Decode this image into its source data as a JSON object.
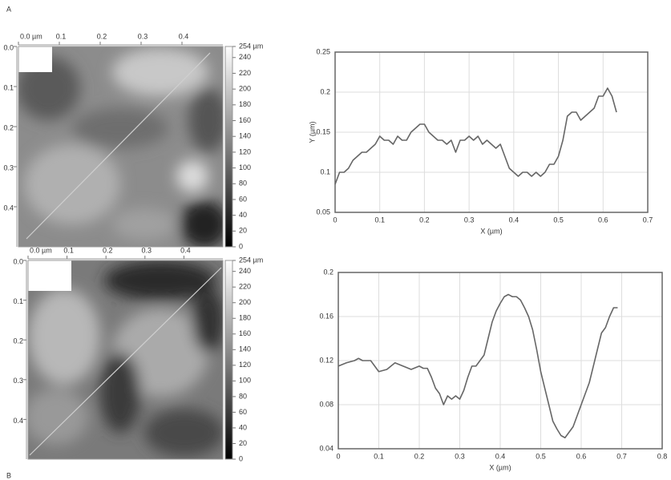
{
  "chart_data": [
    {
      "type": "image",
      "panel_label": "A",
      "xlim": [
        0,
        0.5
      ],
      "xticks": [
        {
          "value": 0,
          "label": "0.0 µm"
        },
        0.1,
        0.2,
        0.3,
        0.4
      ],
      "ylim": [
        0,
        0.5
      ],
      "yticks": [
        {
          "value": 0,
          "label": "0.0"
        },
        0.1,
        0.2,
        0.3,
        0.4
      ],
      "colorbar": {
        "lim": [
          0,
          254
        ],
        "ticks": [
          0,
          20,
          40,
          60,
          80,
          100,
          120,
          140,
          160,
          180,
          200,
          220,
          240,
          {
            "value": 254,
            "label": "254 µm"
          }
        ]
      }
    },
    {
      "type": "line",
      "xlabel": "X (µm)",
      "ylabel": "Y (µm)",
      "xlim": [
        0,
        0.7
      ],
      "xticks": [
        0,
        0.1,
        0.2,
        0.3,
        0.4,
        0.5,
        0.6,
        0.7
      ],
      "ylim": [
        0.05,
        0.25
      ],
      "yticks": [
        0.05,
        0.1,
        0.15,
        0.2,
        0.25
      ],
      "grid": true,
      "x": [
        0,
        0.01,
        0.02,
        0.03,
        0.04,
        0.05,
        0.06,
        0.07,
        0.08,
        0.09,
        0.1,
        0.11,
        0.12,
        0.13,
        0.14,
        0.15,
        0.16,
        0.17,
        0.18,
        0.19,
        0.2,
        0.21,
        0.22,
        0.23,
        0.24,
        0.25,
        0.26,
        0.27,
        0.28,
        0.29,
        0.3,
        0.31,
        0.32,
        0.33,
        0.34,
        0.35,
        0.36,
        0.37,
        0.38,
        0.39,
        0.4,
        0.41,
        0.42,
        0.43,
        0.44,
        0.45,
        0.46,
        0.47,
        0.48,
        0.49,
        0.5,
        0.51,
        0.52,
        0.53,
        0.54,
        0.55,
        0.56,
        0.57,
        0.58,
        0.59,
        0.6,
        0.61,
        0.62,
        0.63
      ],
      "series": [
        {
          "color": "#666666",
          "values": [
            0.085,
            0.1,
            0.1,
            0.105,
            0.115,
            0.12,
            0.125,
            0.125,
            0.13,
            0.135,
            0.145,
            0.14,
            0.14,
            0.135,
            0.145,
            0.14,
            0.14,
            0.15,
            0.155,
            0.16,
            0.16,
            0.15,
            0.145,
            0.14,
            0.14,
            0.135,
            0.14,
            0.125,
            0.14,
            0.14,
            0.145,
            0.14,
            0.145,
            0.135,
            0.14,
            0.135,
            0.13,
            0.135,
            0.12,
            0.105,
            0.1,
            0.095,
            0.1,
            0.1,
            0.095,
            0.1,
            0.095,
            0.1,
            0.11,
            0.11,
            0.12,
            0.14,
            0.17,
            0.175,
            0.175,
            0.165,
            0.17,
            0.175,
            0.18,
            0.195,
            0.195,
            0.205,
            0.195,
            0.175
          ]
        }
      ]
    },
    {
      "type": "image",
      "panel_label": "B",
      "xlim": [
        0,
        0.5
      ],
      "xticks": [
        {
          "value": 0,
          "label": "0.0 µm"
        },
        0.1,
        0.2,
        0.3,
        0.4
      ],
      "ylim": [
        0,
        0.5
      ],
      "yticks": [
        {
          "value": 0,
          "label": "0.0"
        },
        0.1,
        0.2,
        0.3,
        0.4
      ],
      "colorbar": {
        "lim": [
          0,
          254
        ],
        "ticks": [
          0,
          20,
          40,
          60,
          80,
          100,
          120,
          140,
          160,
          180,
          200,
          220,
          240,
          {
            "value": 254,
            "label": "254 µm"
          }
        ]
      }
    },
    {
      "type": "line",
      "xlabel": "X (µm)",
      "xlim": [
        0,
        0.8
      ],
      "xticks": [
        0,
        0.1,
        0.2,
        0.3,
        0.4,
        0.5,
        0.6,
        0.7,
        0.8
      ],
      "ylim": [
        0.04,
        0.2
      ],
      "yticks": [
        0.04,
        0.08,
        0.12,
        0.16,
        0.2
      ],
      "grid": true,
      "x": [
        0,
        0.02,
        0.04,
        0.05,
        0.06,
        0.08,
        0.1,
        0.12,
        0.14,
        0.16,
        0.18,
        0.2,
        0.21,
        0.22,
        0.23,
        0.24,
        0.25,
        0.26,
        0.27,
        0.28,
        0.29,
        0.3,
        0.31,
        0.32,
        0.33,
        0.34,
        0.35,
        0.36,
        0.37,
        0.38,
        0.39,
        0.4,
        0.41,
        0.42,
        0.43,
        0.44,
        0.45,
        0.46,
        0.47,
        0.48,
        0.49,
        0.5,
        0.51,
        0.52,
        0.53,
        0.54,
        0.55,
        0.56,
        0.57,
        0.58,
        0.59,
        0.6,
        0.61,
        0.62,
        0.63,
        0.64,
        0.65,
        0.66,
        0.67,
        0.68,
        0.69
      ],
      "series": [
        {
          "color": "#666666",
          "values": [
            0.115,
            0.118,
            0.12,
            0.122,
            0.12,
            0.12,
            0.11,
            0.112,
            0.118,
            0.115,
            0.112,
            0.115,
            0.113,
            0.113,
            0.105,
            0.095,
            0.09,
            0.08,
            0.088,
            0.085,
            0.088,
            0.085,
            0.093,
            0.105,
            0.115,
            0.115,
            0.12,
            0.125,
            0.14,
            0.155,
            0.165,
            0.172,
            0.178,
            0.18,
            0.178,
            0.178,
            0.175,
            0.168,
            0.16,
            0.148,
            0.13,
            0.11,
            0.095,
            0.08,
            0.065,
            0.058,
            0.052,
            0.05,
            0.055,
            0.06,
            0.07,
            0.08,
            0.09,
            0.1,
            0.115,
            0.13,
            0.145,
            0.15,
            0.16,
            0.168,
            0.168
          ]
        }
      ]
    }
  ]
}
